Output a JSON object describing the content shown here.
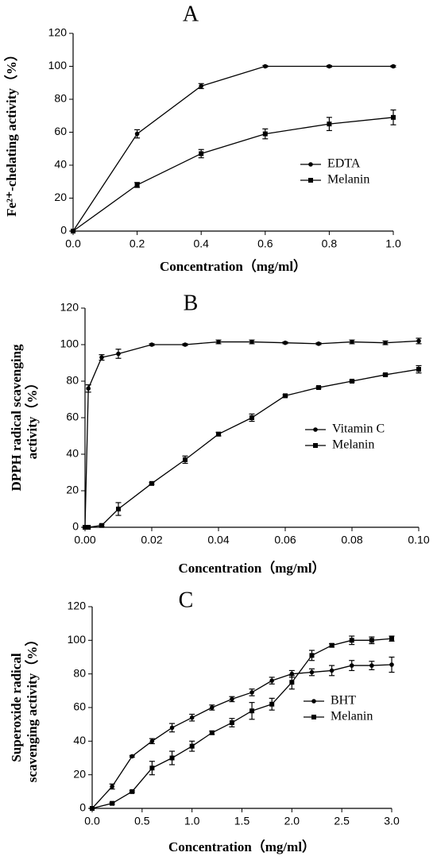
{
  "chart_data": [
    {
      "type": "line",
      "title": "A",
      "ylabel": [
        "Fe²⁺-chelating activity（%）"
      ],
      "xlabel": "Concentration（mg/ml）",
      "x": [
        0,
        0.2,
        0.4,
        0.6,
        0.8,
        1.0
      ],
      "series": [
        {
          "name": "EDTA",
          "color": "#000000",
          "marker": "circle",
          "values": [
            0,
            59,
            88,
            100,
            100,
            100
          ],
          "errors": [
            0,
            2.5,
            1.5,
            0.5,
            0.5,
            0.5
          ]
        },
        {
          "name": "Melanin",
          "color": "#000000",
          "marker": "square",
          "values": [
            0,
            28,
            47,
            59,
            65,
            69
          ],
          "errors": [
            0,
            1.5,
            2.5,
            3,
            4,
            4.5
          ]
        }
      ],
      "xlim": [
        0,
        1
      ],
      "ylim": [
        0,
        120
      ],
      "xticks": [
        {
          "value": 0,
          "label": "0.0"
        },
        0.2,
        0.4,
        0.6,
        0.8,
        {
          "value": 1,
          "label": "1.0"
        }
      ],
      "yticks": [
        0,
        20,
        40,
        60,
        80,
        100,
        120
      ]
    },
    {
      "type": "line",
      "title": "B",
      "ylabel": [
        "DPPH radical scavenging",
        "activity（%）"
      ],
      "xlabel": "Concentration（mg/ml）",
      "x": [
        0,
        0.001,
        0.005,
        0.01,
        0.02,
        0.03,
        0.04,
        0.05,
        0.06,
        0.07,
        0.08,
        0.09,
        0.1
      ],
      "series": [
        {
          "name": "Vitamin C",
          "color": "#000000",
          "marker": "circle",
          "values": [
            0,
            76,
            93,
            95,
            100,
            100,
            101.5,
            101.5,
            101,
            100.5,
            101.5,
            101,
            102
          ],
          "errors": [
            0,
            2,
            1.5,
            2.5,
            0.5,
            0.5,
            1,
            1,
            0.5,
            0.5,
            1,
            1,
            1.5
          ]
        },
        {
          "name": "Melanin",
          "color": "#000000",
          "marker": "square",
          "values": [
            0,
            0,
            1,
            10,
            24,
            37,
            51,
            60,
            72,
            76.5,
            80,
            83.5,
            86.5
          ],
          "errors": [
            0,
            0,
            0.5,
            3.5,
            0.5,
            2,
            1,
            2,
            0.5,
            0.5,
            0.5,
            0.5,
            2
          ]
        }
      ],
      "xlim": [
        0,
        0.1
      ],
      "ylim": [
        0,
        120
      ],
      "xticks": [
        {
          "value": 0,
          "label": "0.00"
        },
        {
          "value": 0.02,
          "label": "0.02"
        },
        {
          "value": 0.04,
          "label": "0.04"
        },
        {
          "value": 0.06,
          "label": "0.06"
        },
        {
          "value": 0.08,
          "label": "0.08"
        },
        {
          "value": 0.1,
          "label": "0.10"
        }
      ],
      "yticks": [
        0,
        20,
        40,
        60,
        80,
        100,
        120
      ]
    },
    {
      "type": "line",
      "title": "C",
      "ylabel": [
        "Superoxide radical",
        "scavenging activity（%）"
      ],
      "xlabel": "Concentration（mg/ml）",
      "x": [
        0,
        0.2,
        0.4,
        0.6,
        0.8,
        1.0,
        1.2,
        1.4,
        1.6,
        1.8,
        2.0,
        2.2,
        2.4,
        2.6,
        2.8,
        3.0
      ],
      "series": [
        {
          "name": "BHT",
          "color": "#000000",
          "marker": "circle",
          "values": [
            0,
            13,
            31,
            40,
            48,
            54,
            60,
            65,
            69,
            76,
            80,
            81,
            82,
            85,
            85,
            85.5
          ],
          "errors": [
            0,
            1.5,
            0.5,
            1.5,
            2.5,
            2,
            1.5,
            1.5,
            2,
            2,
            2,
            2,
            3,
            3,
            2.5,
            4.5
          ]
        },
        {
          "name": "Melanin",
          "color": "#000000",
          "marker": "square",
          "values": [
            0,
            3,
            10,
            24,
            30,
            37,
            45,
            51,
            58,
            62,
            75,
            91,
            97,
            100,
            100,
            101
          ],
          "errors": [
            0,
            0.5,
            0.5,
            4,
            4,
            3,
            1,
            2.5,
            5,
            3.5,
            4,
            3,
            1,
            2.5,
            2,
            1.5
          ]
        }
      ],
      "xlim": [
        0,
        3
      ],
      "ylim": [
        0,
        120
      ],
      "xticks": [
        {
          "value": 0,
          "label": "0.0"
        },
        0.5,
        {
          "value": 1,
          "label": "1.0"
        },
        1.5,
        {
          "value": 2,
          "label": "2.0"
        },
        2.5,
        {
          "value": 3,
          "label": "3.0"
        }
      ],
      "yticks": [
        0,
        20,
        40,
        60,
        80,
        100,
        120
      ]
    }
  ]
}
